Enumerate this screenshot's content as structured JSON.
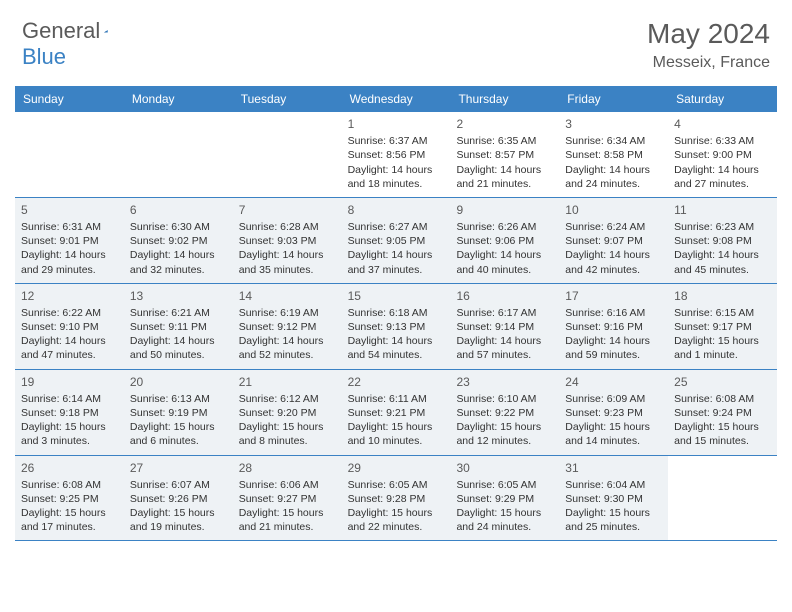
{
  "logo": {
    "text_general": "General",
    "text_blue": "Blue"
  },
  "title": {
    "month": "May 2024",
    "location": "Messeix, France"
  },
  "styling": {
    "header_bg": "#3b82c4",
    "header_text": "#ffffff",
    "alt_row_bg": "#eef2f5",
    "plain_row_bg": "#ffffff",
    "border_color": "#3b82c4",
    "title_color": "#5a5a5a",
    "text_color": "#333333",
    "logo_gray": "#5a5a5a",
    "logo_blue": "#3b82c4",
    "font_family": "Arial",
    "day_header_fontsize": 12,
    "day_number_fontsize": 12,
    "day_info_fontsize": 10.5,
    "title_fontsize": 28,
    "location_fontsize": 16
  },
  "day_names": [
    "Sunday",
    "Monday",
    "Tuesday",
    "Wednesday",
    "Thursday",
    "Friday",
    "Saturday"
  ],
  "weeks": [
    {
      "alt": false,
      "days": [
        {
          "blank": true
        },
        {
          "blank": true
        },
        {
          "blank": true
        },
        {
          "num": "1",
          "sunrise": "Sunrise: 6:37 AM",
          "sunset": "Sunset: 8:56 PM",
          "daylight1": "Daylight: 14 hours",
          "daylight2": "and 18 minutes."
        },
        {
          "num": "2",
          "sunrise": "Sunrise: 6:35 AM",
          "sunset": "Sunset: 8:57 PM",
          "daylight1": "Daylight: 14 hours",
          "daylight2": "and 21 minutes."
        },
        {
          "num": "3",
          "sunrise": "Sunrise: 6:34 AM",
          "sunset": "Sunset: 8:58 PM",
          "daylight1": "Daylight: 14 hours",
          "daylight2": "and 24 minutes."
        },
        {
          "num": "4",
          "sunrise": "Sunrise: 6:33 AM",
          "sunset": "Sunset: 9:00 PM",
          "daylight1": "Daylight: 14 hours",
          "daylight2": "and 27 minutes."
        }
      ]
    },
    {
      "alt": true,
      "days": [
        {
          "num": "5",
          "sunrise": "Sunrise: 6:31 AM",
          "sunset": "Sunset: 9:01 PM",
          "daylight1": "Daylight: 14 hours",
          "daylight2": "and 29 minutes."
        },
        {
          "num": "6",
          "sunrise": "Sunrise: 6:30 AM",
          "sunset": "Sunset: 9:02 PM",
          "daylight1": "Daylight: 14 hours",
          "daylight2": "and 32 minutes."
        },
        {
          "num": "7",
          "sunrise": "Sunrise: 6:28 AM",
          "sunset": "Sunset: 9:03 PM",
          "daylight1": "Daylight: 14 hours",
          "daylight2": "and 35 minutes."
        },
        {
          "num": "8",
          "sunrise": "Sunrise: 6:27 AM",
          "sunset": "Sunset: 9:05 PM",
          "daylight1": "Daylight: 14 hours",
          "daylight2": "and 37 minutes."
        },
        {
          "num": "9",
          "sunrise": "Sunrise: 6:26 AM",
          "sunset": "Sunset: 9:06 PM",
          "daylight1": "Daylight: 14 hours",
          "daylight2": "and 40 minutes."
        },
        {
          "num": "10",
          "sunrise": "Sunrise: 6:24 AM",
          "sunset": "Sunset: 9:07 PM",
          "daylight1": "Daylight: 14 hours",
          "daylight2": "and 42 minutes."
        },
        {
          "num": "11",
          "sunrise": "Sunrise: 6:23 AM",
          "sunset": "Sunset: 9:08 PM",
          "daylight1": "Daylight: 14 hours",
          "daylight2": "and 45 minutes."
        }
      ]
    },
    {
      "alt": true,
      "days": [
        {
          "num": "12",
          "sunrise": "Sunrise: 6:22 AM",
          "sunset": "Sunset: 9:10 PM",
          "daylight1": "Daylight: 14 hours",
          "daylight2": "and 47 minutes."
        },
        {
          "num": "13",
          "sunrise": "Sunrise: 6:21 AM",
          "sunset": "Sunset: 9:11 PM",
          "daylight1": "Daylight: 14 hours",
          "daylight2": "and 50 minutes."
        },
        {
          "num": "14",
          "sunrise": "Sunrise: 6:19 AM",
          "sunset": "Sunset: 9:12 PM",
          "daylight1": "Daylight: 14 hours",
          "daylight2": "and 52 minutes."
        },
        {
          "num": "15",
          "sunrise": "Sunrise: 6:18 AM",
          "sunset": "Sunset: 9:13 PM",
          "daylight1": "Daylight: 14 hours",
          "daylight2": "and 54 minutes."
        },
        {
          "num": "16",
          "sunrise": "Sunrise: 6:17 AM",
          "sunset": "Sunset: 9:14 PM",
          "daylight1": "Daylight: 14 hours",
          "daylight2": "and 57 minutes."
        },
        {
          "num": "17",
          "sunrise": "Sunrise: 6:16 AM",
          "sunset": "Sunset: 9:16 PM",
          "daylight1": "Daylight: 14 hours",
          "daylight2": "and 59 minutes."
        },
        {
          "num": "18",
          "sunrise": "Sunrise: 6:15 AM",
          "sunset": "Sunset: 9:17 PM",
          "daylight1": "Daylight: 15 hours",
          "daylight2": "and 1 minute."
        }
      ]
    },
    {
      "alt": true,
      "days": [
        {
          "num": "19",
          "sunrise": "Sunrise: 6:14 AM",
          "sunset": "Sunset: 9:18 PM",
          "daylight1": "Daylight: 15 hours",
          "daylight2": "and 3 minutes."
        },
        {
          "num": "20",
          "sunrise": "Sunrise: 6:13 AM",
          "sunset": "Sunset: 9:19 PM",
          "daylight1": "Daylight: 15 hours",
          "daylight2": "and 6 minutes."
        },
        {
          "num": "21",
          "sunrise": "Sunrise: 6:12 AM",
          "sunset": "Sunset: 9:20 PM",
          "daylight1": "Daylight: 15 hours",
          "daylight2": "and 8 minutes."
        },
        {
          "num": "22",
          "sunrise": "Sunrise: 6:11 AM",
          "sunset": "Sunset: 9:21 PM",
          "daylight1": "Daylight: 15 hours",
          "daylight2": "and 10 minutes."
        },
        {
          "num": "23",
          "sunrise": "Sunrise: 6:10 AM",
          "sunset": "Sunset: 9:22 PM",
          "daylight1": "Daylight: 15 hours",
          "daylight2": "and 12 minutes."
        },
        {
          "num": "24",
          "sunrise": "Sunrise: 6:09 AM",
          "sunset": "Sunset: 9:23 PM",
          "daylight1": "Daylight: 15 hours",
          "daylight2": "and 14 minutes."
        },
        {
          "num": "25",
          "sunrise": "Sunrise: 6:08 AM",
          "sunset": "Sunset: 9:24 PM",
          "daylight1": "Daylight: 15 hours",
          "daylight2": "and 15 minutes."
        }
      ]
    },
    {
      "alt": true,
      "days": [
        {
          "num": "26",
          "sunrise": "Sunrise: 6:08 AM",
          "sunset": "Sunset: 9:25 PM",
          "daylight1": "Daylight: 15 hours",
          "daylight2": "and 17 minutes."
        },
        {
          "num": "27",
          "sunrise": "Sunrise: 6:07 AM",
          "sunset": "Sunset: 9:26 PM",
          "daylight1": "Daylight: 15 hours",
          "daylight2": "and 19 minutes."
        },
        {
          "num": "28",
          "sunrise": "Sunrise: 6:06 AM",
          "sunset": "Sunset: 9:27 PM",
          "daylight1": "Daylight: 15 hours",
          "daylight2": "and 21 minutes."
        },
        {
          "num": "29",
          "sunrise": "Sunrise: 6:05 AM",
          "sunset": "Sunset: 9:28 PM",
          "daylight1": "Daylight: 15 hours",
          "daylight2": "and 22 minutes."
        },
        {
          "num": "30",
          "sunrise": "Sunrise: 6:05 AM",
          "sunset": "Sunset: 9:29 PM",
          "daylight1": "Daylight: 15 hours",
          "daylight2": "and 24 minutes."
        },
        {
          "num": "31",
          "sunrise": "Sunrise: 6:04 AM",
          "sunset": "Sunset: 9:30 PM",
          "daylight1": "Daylight: 15 hours",
          "daylight2": "and 25 minutes."
        },
        {
          "blank": true
        }
      ]
    }
  ]
}
